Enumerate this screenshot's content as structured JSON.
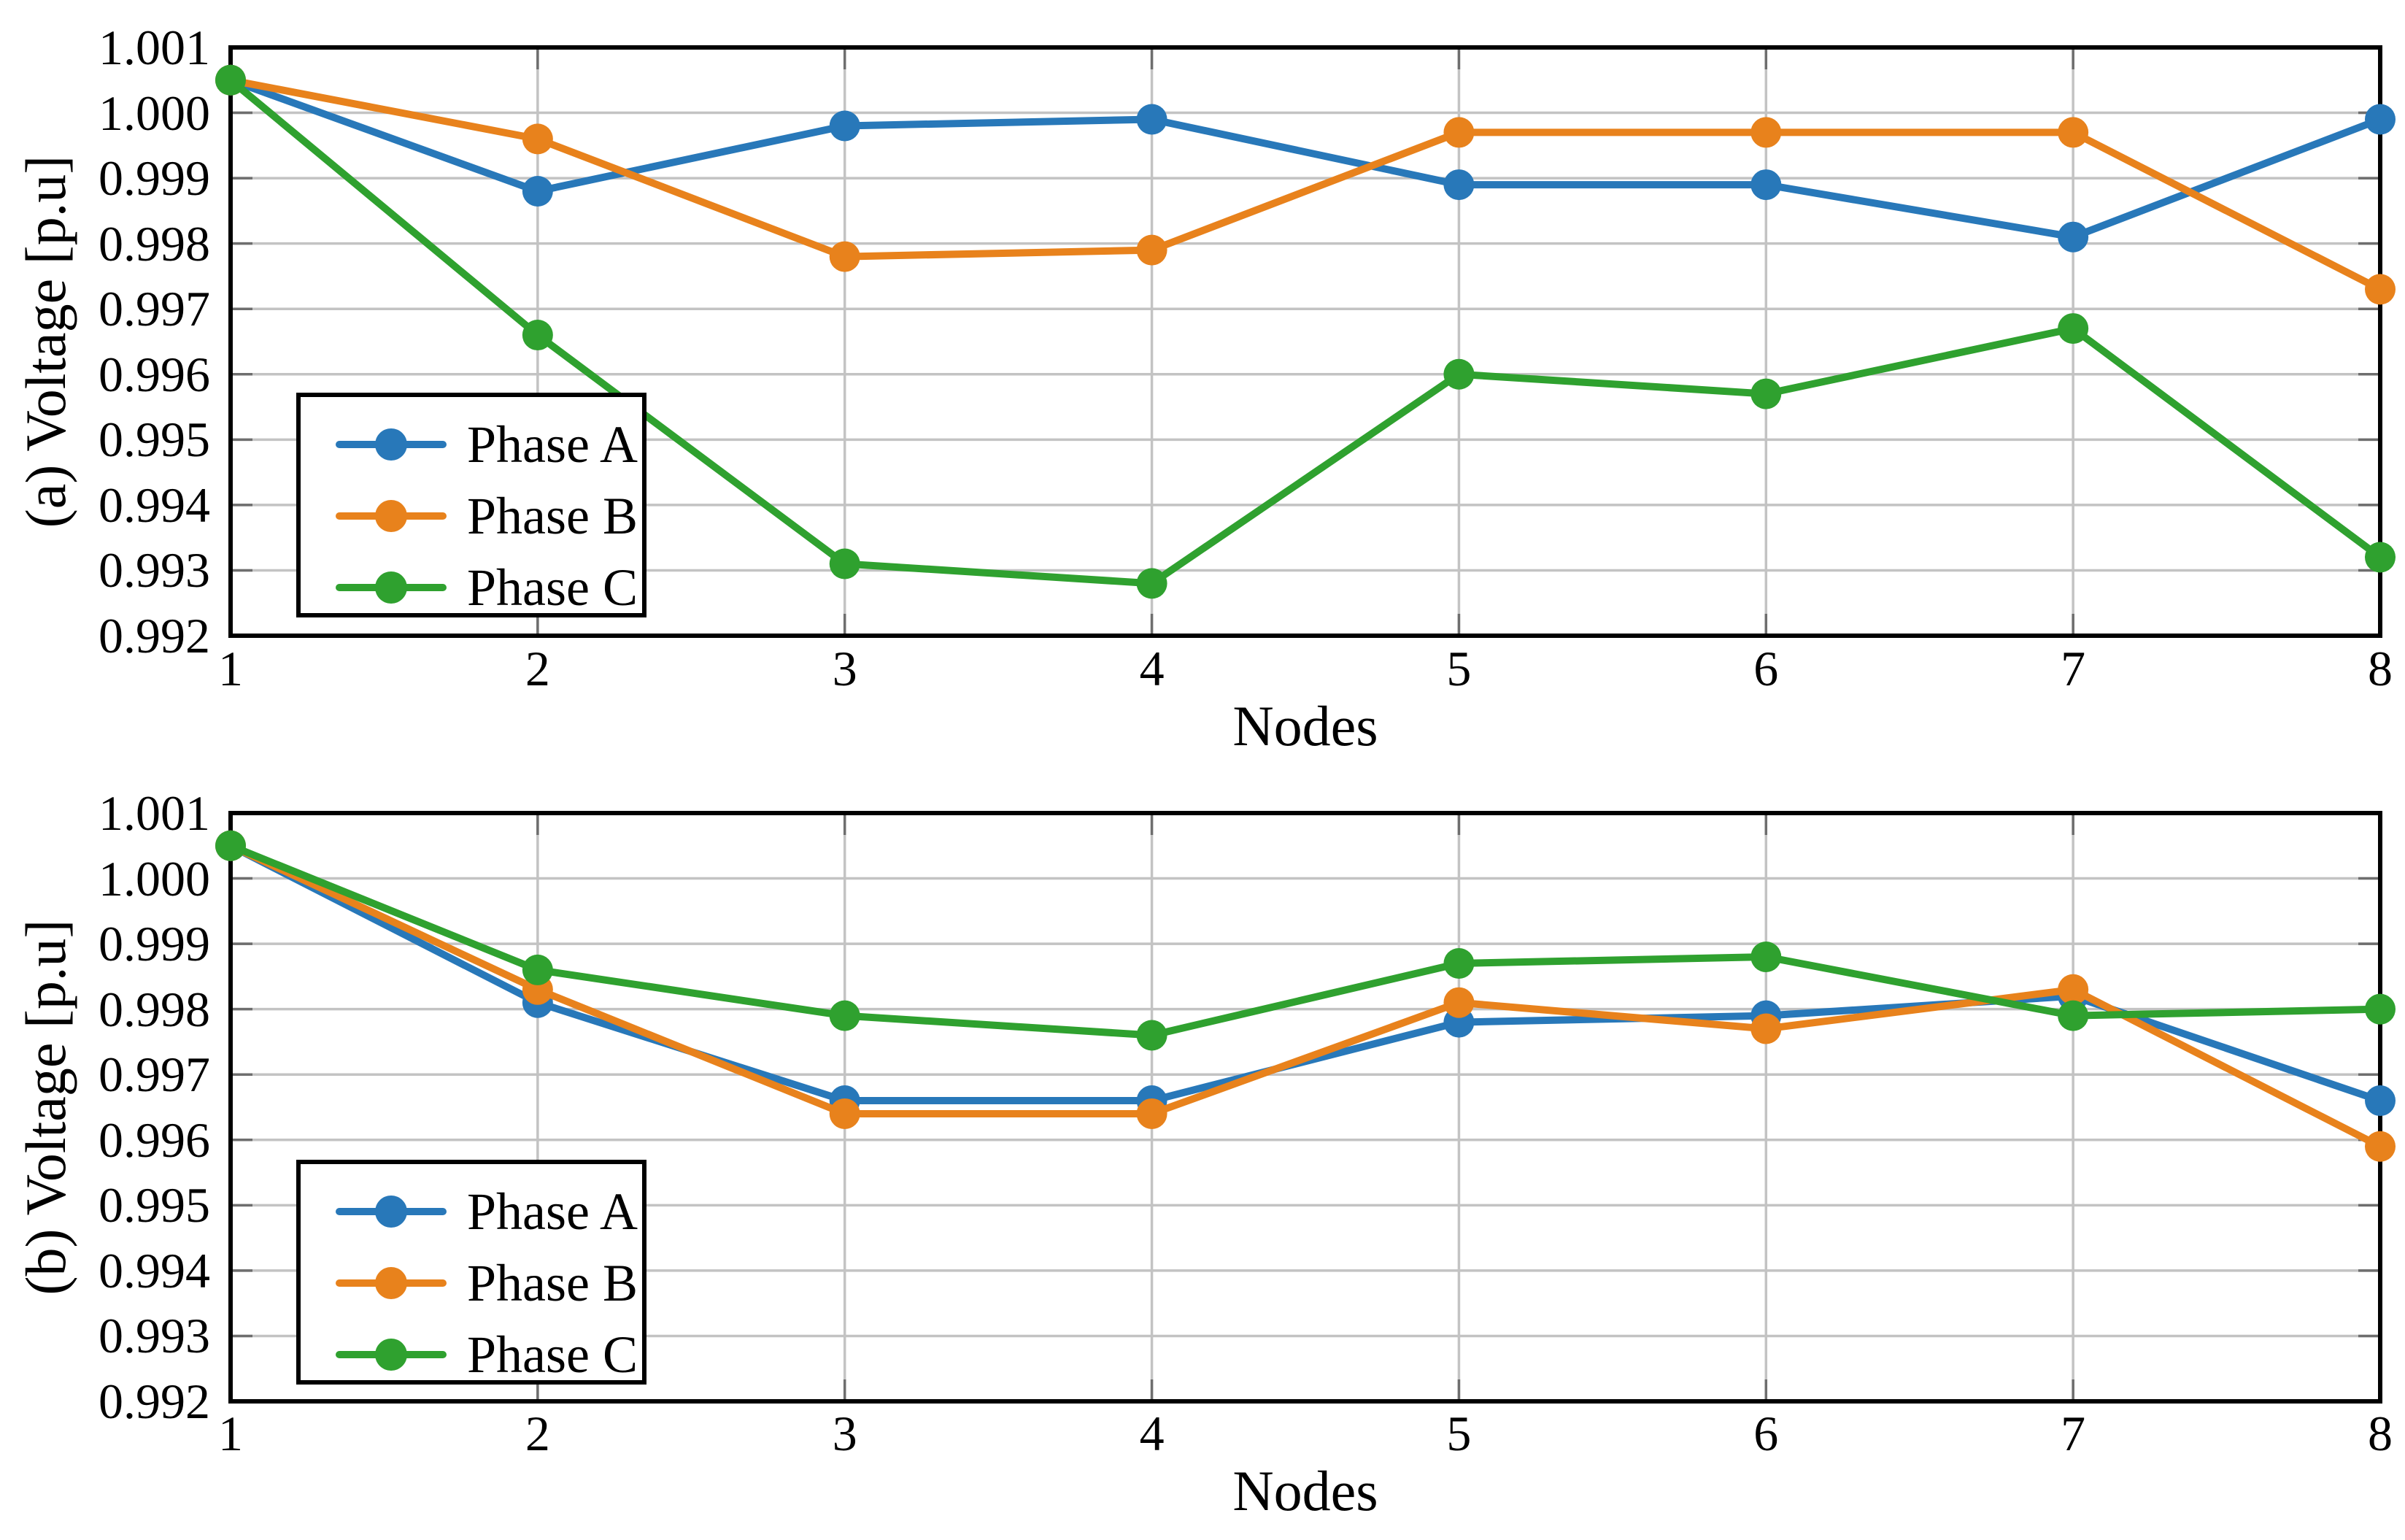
{
  "figure": {
    "background": "#ffffff",
    "frame_color": "#000000",
    "gridline_color": "#c3c3c3",
    "tick_color": "#6e6e6e"
  },
  "chart_data": [
    {
      "type": "line",
      "panel": "a",
      "title": "",
      "xlabel": "Nodes",
      "ylabel": "(a) Voltage [p.u]",
      "x": [
        1,
        2,
        3,
        4,
        5,
        6,
        7,
        8
      ],
      "x_tick_labels": [
        "1",
        "2",
        "3",
        "4",
        "5",
        "6",
        "7",
        "8"
      ],
      "y_tick_labels": [
        "1.001",
        "1.000",
        "0.999",
        "0.998",
        "0.997",
        "0.996",
        "0.995",
        "0.994",
        "0.993",
        "0.992"
      ],
      "ylim": [
        0.992,
        1.001
      ],
      "y_tick_step": 0.001,
      "grid": true,
      "legend": {
        "position": "lower-left-inside",
        "entries": [
          "Phase A",
          "Phase B",
          "Phase C"
        ]
      },
      "series": [
        {
          "name": "Phase A",
          "color": "#2878B9",
          "values": [
            1.0005,
            0.9988,
            0.9998,
            0.9999,
            0.9989,
            0.9989,
            0.9981,
            0.9999
          ]
        },
        {
          "name": "Phase B",
          "color": "#E8821C",
          "values": [
            1.0005,
            0.9996,
            0.9978,
            0.9979,
            0.9997,
            0.9997,
            0.9997,
            0.9973
          ]
        },
        {
          "name": "Phase C",
          "color": "#2FA12F",
          "values": [
            1.0005,
            0.9966,
            0.9931,
            0.9928,
            0.996,
            0.9957,
            0.9967,
            0.9932
          ]
        }
      ]
    },
    {
      "type": "line",
      "panel": "b",
      "title": "",
      "xlabel": "Nodes",
      "ylabel": "(b) Voltage [p.u]",
      "x": [
        1,
        2,
        3,
        4,
        5,
        6,
        7,
        8
      ],
      "x_tick_labels": [
        "1",
        "2",
        "3",
        "4",
        "5",
        "6",
        "7",
        "8"
      ],
      "y_tick_labels": [
        "1.001",
        "1.000",
        "0.999",
        "0.998",
        "0.997",
        "0.996",
        "0.995",
        "0.994",
        "0.993",
        "0.992"
      ],
      "ylim": [
        0.992,
        1.001
      ],
      "y_tick_step": 0.001,
      "grid": true,
      "legend": {
        "position": "lower-left-inside",
        "entries": [
          "Phase A",
          "Phase B",
          "Phase C"
        ]
      },
      "series": [
        {
          "name": "Phase A",
          "color": "#2878B9",
          "values": [
            1.0005,
            0.9981,
            0.9966,
            0.9966,
            0.9978,
            0.9979,
            0.9982,
            0.9966
          ]
        },
        {
          "name": "Phase B",
          "color": "#E8821C",
          "values": [
            1.0005,
            0.9983,
            0.9964,
            0.9964,
            0.9981,
            0.9977,
            0.9983,
            0.9959
          ]
        },
        {
          "name": "Phase C",
          "color": "#2FA12F",
          "values": [
            1.0005,
            0.9986,
            0.9979,
            0.9976,
            0.9987,
            0.9988,
            0.9979,
            0.998
          ]
        }
      ]
    }
  ]
}
